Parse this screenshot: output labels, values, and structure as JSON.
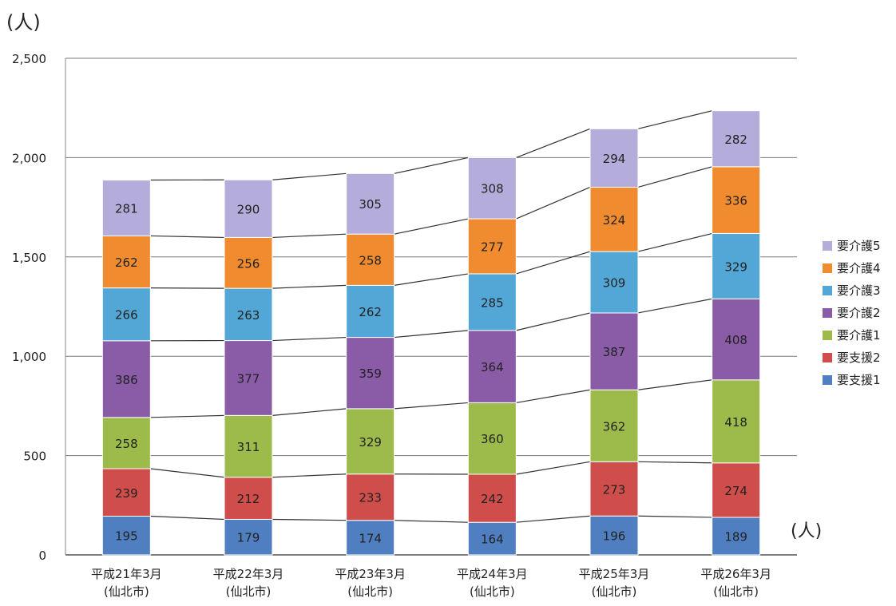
{
  "chart_data": {
    "type": "bar",
    "stacked": true,
    "y_unit_label": "(人)",
    "x_unit_label": "(人)",
    "categories": [
      "平成21年3月\n(仙北市)",
      "平成22年3月\n(仙北市)",
      "平成23年3月\n(仙北市)",
      "平成24年3月\n(仙北市)",
      "平成25年3月\n(仙北市)",
      "平成26年3月\n(仙北市)"
    ],
    "series": [
      {
        "name": "要支援1",
        "color": "#4f7fc0",
        "values": [
          195,
          179,
          174,
          164,
          196,
          189
        ]
      },
      {
        "name": "要支援2",
        "color": "#cf4d4a",
        "values": [
          239,
          212,
          233,
          242,
          273,
          274
        ]
      },
      {
        "name": "要介護1",
        "color": "#9cbb4a",
        "values": [
          258,
          311,
          329,
          360,
          362,
          418
        ]
      },
      {
        "name": "要介護2",
        "color": "#8a5ba6",
        "values": [
          386,
          377,
          359,
          364,
          387,
          408
        ]
      },
      {
        "name": "要介護3",
        "color": "#52a7d6",
        "values": [
          266,
          263,
          262,
          285,
          309,
          329
        ]
      },
      {
        "name": "要介護4",
        "color": "#f08b2f",
        "values": [
          262,
          256,
          258,
          277,
          324,
          336
        ]
      },
      {
        "name": "要介護5",
        "color": "#b4addb",
        "values": [
          281,
          290,
          305,
          308,
          294,
          282
        ]
      }
    ],
    "ylim": [
      0,
      2500
    ],
    "yticks": [
      0,
      500,
      1000,
      1500,
      2000,
      2500
    ],
    "ytick_labels": [
      "0",
      "500",
      "1,000",
      "1,500",
      "2,000",
      "2,500"
    ],
    "grid": true,
    "legend_position": "right",
    "legend_order": [
      "要介護5",
      "要介護4",
      "要介護3",
      "要介護2",
      "要介護1",
      "要支援2",
      "要支援1"
    ]
  }
}
